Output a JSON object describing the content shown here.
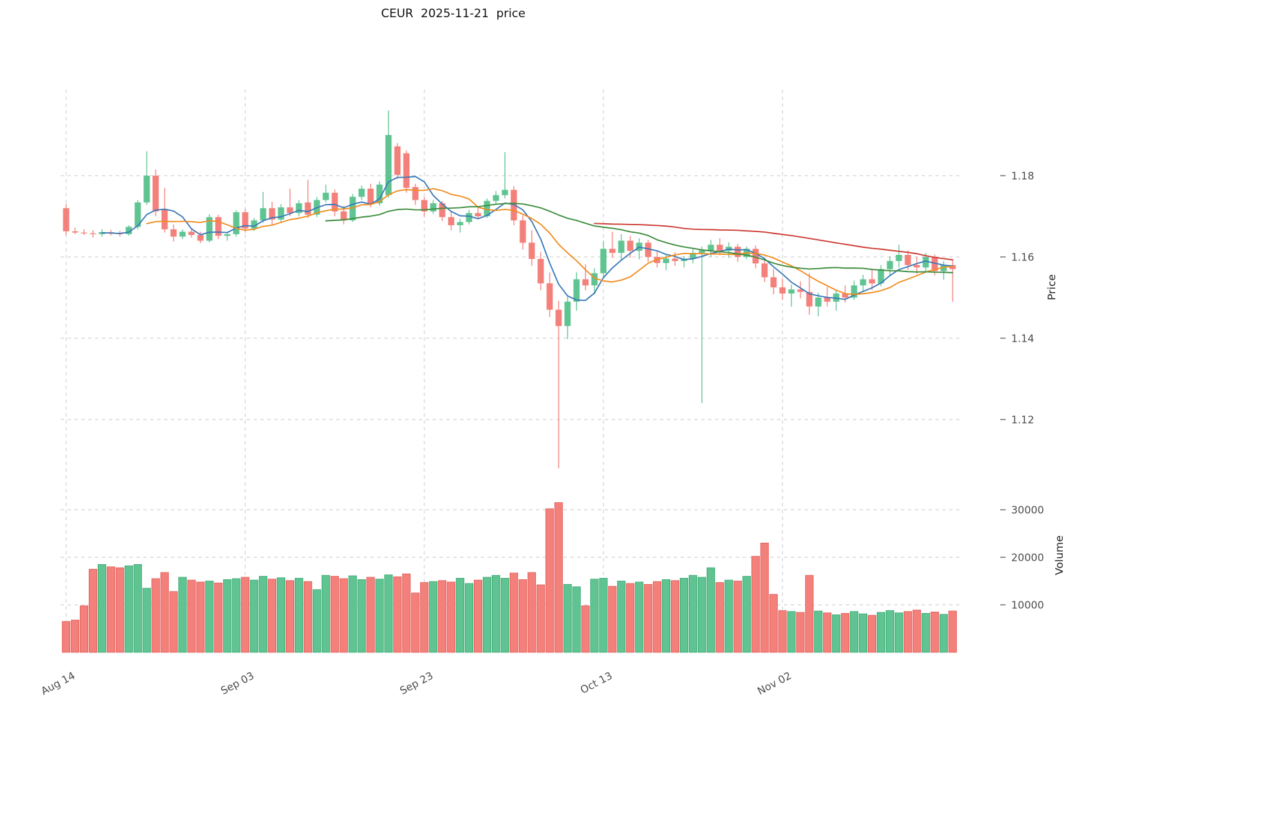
{
  "title": "CEUR  2025-11-21  price",
  "axes": {
    "price_label": "Price",
    "volume_label": "Volume",
    "price_ticks": [
      "1.18",
      "1.16",
      "1.14",
      "1.12"
    ],
    "price_tick_values": [
      1.18,
      1.16,
      1.14,
      1.12
    ],
    "volume_ticks": [
      "30000",
      "20000",
      "10000"
    ],
    "volume_tick_values": [
      30000,
      20000,
      10000
    ],
    "x_ticks": [
      {
        "label": "Aug 14",
        "index": 0
      },
      {
        "label": "Sep 03",
        "index": 20
      },
      {
        "label": "Sep 23",
        "index": 40
      },
      {
        "label": "Oct 13",
        "index": 60
      },
      {
        "label": "Nov 02",
        "index": 80
      }
    ]
  },
  "colors": {
    "up": "#5fc492",
    "down": "#f3807a",
    "up_edge": "#3da774",
    "down_edge": "#e05c58",
    "grid": "#c9c9c9",
    "tick_text": "#4d4d4d"
  },
  "chart_data": {
    "type": "candlestick",
    "symbol": "CEUR",
    "as_of_date": "2025-11-21",
    "panels": [
      "price",
      "volume"
    ],
    "price_axis_range": [
      1.105,
      1.201
    ],
    "volume_axis_range": [
      0,
      33000
    ],
    "grid": true,
    "moving_averages": [
      {
        "name": "MA5",
        "window": 5,
        "color": "#3a79b8"
      },
      {
        "name": "MA10",
        "window": 10,
        "color": "#f08c1e"
      },
      {
        "name": "MA30",
        "window": 30,
        "color": "#3c8c3c"
      },
      {
        "name": "MA60",
        "window": 60,
        "color": "#cc3b33"
      }
    ],
    "columns": [
      "date",
      "open",
      "high",
      "low",
      "close",
      "volume"
    ],
    "candles": [
      [
        "08-14",
        1.172,
        1.173,
        1.1653,
        1.1663,
        6500
      ],
      [
        "08-15",
        1.1663,
        1.1672,
        1.1656,
        1.166,
        6800
      ],
      [
        "08-16",
        1.166,
        1.1668,
        1.1654,
        1.1658,
        9800
      ],
      [
        "08-17",
        1.1658,
        1.1666,
        1.1648,
        1.1656,
        17500
      ],
      [
        "08-18",
        1.1656,
        1.1668,
        1.165,
        1.1661,
        18500
      ],
      [
        "08-19",
        1.1661,
        1.1667,
        1.1653,
        1.1658,
        18000
      ],
      [
        "08-20",
        1.1658,
        1.1664,
        1.165,
        1.1656,
        17800
      ],
      [
        "08-21",
        1.1656,
        1.1678,
        1.1652,
        1.1674,
        18200
      ],
      [
        "08-22",
        1.1674,
        1.174,
        1.1668,
        1.1734,
        18500
      ],
      [
        "08-23",
        1.1734,
        1.186,
        1.1728,
        1.18,
        13500
      ],
      [
        "08-24",
        1.18,
        1.1815,
        1.17,
        1.1712,
        15500
      ],
      [
        "08-25",
        1.1718,
        1.177,
        1.166,
        1.1668,
        16800
      ],
      [
        "08-26",
        1.1668,
        1.168,
        1.1638,
        1.165,
        12800
      ],
      [
        "08-27",
        1.165,
        1.1668,
        1.1644,
        1.1662,
        15800
      ],
      [
        "08-28",
        1.1662,
        1.167,
        1.1648,
        1.1654,
        15200
      ],
      [
        "08-29",
        1.1654,
        1.1662,
        1.1634,
        1.164,
        14800
      ],
      [
        "08-30",
        1.164,
        1.1705,
        1.1636,
        1.1698,
        15000
      ],
      [
        "08-31",
        1.1698,
        1.1704,
        1.1644,
        1.1652,
        14600
      ],
      [
        "09-01",
        1.1652,
        1.1662,
        1.164,
        1.1656,
        15300
      ],
      [
        "09-02",
        1.1656,
        1.1715,
        1.165,
        1.171,
        15500
      ],
      [
        "09-03",
        1.171,
        1.1718,
        1.166,
        1.167,
        15800
      ],
      [
        "09-04",
        1.167,
        1.1696,
        1.1664,
        1.169,
        15200
      ],
      [
        "09-05",
        1.169,
        1.176,
        1.1684,
        1.172,
        16000
      ],
      [
        "09-06",
        1.172,
        1.1736,
        1.168,
        1.1692,
        15400
      ],
      [
        "09-07",
        1.1692,
        1.173,
        1.1686,
        1.1722,
        15700
      ],
      [
        "09-08",
        1.1722,
        1.1768,
        1.17,
        1.1708,
        15100
      ],
      [
        "09-09",
        1.1708,
        1.174,
        1.17,
        1.1732,
        15600
      ],
      [
        "09-10",
        1.1734,
        1.179,
        1.1696,
        1.1704,
        14900
      ],
      [
        "09-11",
        1.1704,
        1.1748,
        1.1698,
        1.174,
        13200
      ],
      [
        "09-12",
        1.174,
        1.1778,
        1.1734,
        1.1758,
        16200
      ],
      [
        "09-13",
        1.1758,
        1.1766,
        1.17,
        1.1712,
        16000
      ],
      [
        "09-14",
        1.1712,
        1.1726,
        1.168,
        1.169,
        15500
      ],
      [
        "09-15",
        1.169,
        1.1755,
        1.1686,
        1.1748,
        16100
      ],
      [
        "09-16",
        1.1748,
        1.1776,
        1.174,
        1.1768,
        15300
      ],
      [
        "09-17",
        1.1768,
        1.178,
        1.1722,
        1.173,
        15800
      ],
      [
        "09-18",
        1.1732,
        1.1786,
        1.1726,
        1.1778,
        15400
      ],
      [
        "09-19",
        1.1752,
        1.196,
        1.1746,
        1.19,
        16300
      ],
      [
        "09-20",
        1.1872,
        1.188,
        1.1792,
        1.1802,
        15900
      ],
      [
        "09-21",
        1.1855,
        1.1862,
        1.1758,
        1.177,
        16500
      ],
      [
        "09-22",
        1.1772,
        1.178,
        1.1728,
        1.174,
        12500
      ],
      [
        "09-23",
        1.174,
        1.1748,
        1.1698,
        1.1712,
        14700
      ],
      [
        "09-24",
        1.1712,
        1.174,
        1.1706,
        1.1732,
        14900
      ],
      [
        "09-25",
        1.1732,
        1.1738,
        1.1688,
        1.1698,
        15100
      ],
      [
        "09-26",
        1.1698,
        1.1712,
        1.1666,
        1.1678,
        14800
      ],
      [
        "09-27",
        1.1678,
        1.1694,
        1.166,
        1.1686,
        15600
      ],
      [
        "09-28",
        1.1686,
        1.1716,
        1.168,
        1.1708,
        14500
      ],
      [
        "09-29",
        1.1708,
        1.1722,
        1.1694,
        1.17,
        15200
      ],
      [
        "09-30",
        1.17,
        1.1744,
        1.1696,
        1.1738,
        15800
      ],
      [
        "10-01",
        1.1738,
        1.1762,
        1.173,
        1.1752,
        16200
      ],
      [
        "10-02",
        1.1752,
        1.1858,
        1.1744,
        1.1765,
        15600
      ],
      [
        "10-03",
        1.1765,
        1.1774,
        1.1678,
        1.169,
        16700
      ],
      [
        "10-04",
        1.169,
        1.1702,
        1.1618,
        1.1635,
        15300
      ],
      [
        "10-05",
        1.1635,
        1.1666,
        1.1578,
        1.1595,
        16800
      ],
      [
        "10-06",
        1.1595,
        1.1612,
        1.1518,
        1.1535,
        14200
      ],
      [
        "10-07",
        1.1535,
        1.1562,
        1.1452,
        1.147,
        30200
      ],
      [
        "10-08",
        1.147,
        1.1492,
        1.108,
        1.143,
        31500
      ],
      [
        "10-09",
        1.143,
        1.1502,
        1.1398,
        1.149,
        14300
      ],
      [
        "10-10",
        1.149,
        1.1562,
        1.1468,
        1.1545,
        13800
      ],
      [
        "10-11",
        1.1545,
        1.1582,
        1.1518,
        1.153,
        9800
      ],
      [
        "10-12",
        1.153,
        1.1572,
        1.1508,
        1.156,
        15400
      ],
      [
        "10-13",
        1.156,
        1.164,
        1.1548,
        1.162,
        15600
      ],
      [
        "10-14",
        1.162,
        1.1662,
        1.1598,
        1.161,
        13900
      ],
      [
        "10-15",
        1.161,
        1.1656,
        1.159,
        1.164,
        15000
      ],
      [
        "10-16",
        1.164,
        1.1652,
        1.1598,
        1.1615,
        14500
      ],
      [
        "10-17",
        1.1615,
        1.1646,
        1.1594,
        1.1635,
        14800
      ],
      [
        "10-18",
        1.1635,
        1.1642,
        1.1588,
        1.16,
        14300
      ],
      [
        "10-19",
        1.16,
        1.1616,
        1.1574,
        1.1585,
        14900
      ],
      [
        "10-20",
        1.1585,
        1.1606,
        1.1568,
        1.1596,
        15300
      ],
      [
        "10-21",
        1.1596,
        1.1612,
        1.1578,
        1.159,
        15100
      ],
      [
        "10-22",
        1.159,
        1.1602,
        1.1574,
        1.1596,
        15600
      ],
      [
        "10-23",
        1.1596,
        1.162,
        1.1584,
        1.161,
        16200
      ],
      [
        "10-24",
        1.161,
        1.1626,
        1.124,
        1.1616,
        15800
      ],
      [
        "10-25",
        1.1616,
        1.1642,
        1.16,
        1.163,
        17800
      ],
      [
        "10-26",
        1.163,
        1.1646,
        1.1604,
        1.1615,
        14700
      ],
      [
        "10-27",
        1.1615,
        1.1636,
        1.1598,
        1.1625,
        15200
      ],
      [
        "10-28",
        1.1625,
        1.1632,
        1.1588,
        1.16,
        15000
      ],
      [
        "10-29",
        1.16,
        1.1626,
        1.1594,
        1.162,
        16000
      ],
      [
        "10-30",
        1.162,
        1.1628,
        1.1572,
        1.1584,
        20200
      ],
      [
        "10-31",
        1.1584,
        1.1596,
        1.1538,
        1.155,
        23000
      ],
      [
        "11-01",
        1.155,
        1.157,
        1.1508,
        1.1525,
        12200
      ],
      [
        "11-02",
        1.1525,
        1.1546,
        1.1494,
        1.151,
        8800
      ],
      [
        "11-03",
        1.151,
        1.1532,
        1.1478,
        1.152,
        8600
      ],
      [
        "11-04",
        1.152,
        1.154,
        1.1498,
        1.1514,
        8400
      ],
      [
        "11-05",
        1.1514,
        1.156,
        1.1458,
        1.1478,
        16200
      ],
      [
        "11-06",
        1.1478,
        1.1512,
        1.1454,
        1.15,
        8700
      ],
      [
        "11-07",
        1.15,
        1.1526,
        1.1478,
        1.149,
        8300
      ],
      [
        "11-08",
        1.149,
        1.152,
        1.1468,
        1.151,
        7900
      ],
      [
        "11-09",
        1.151,
        1.153,
        1.1488,
        1.15,
        8200
      ],
      [
        "11-10",
        1.15,
        1.1542,
        1.1494,
        1.153,
        8600
      ],
      [
        "11-11",
        1.153,
        1.1556,
        1.1514,
        1.1545,
        8100
      ],
      [
        "11-12",
        1.1545,
        1.157,
        1.1518,
        1.1535,
        7800
      ],
      [
        "11-13",
        1.1535,
        1.158,
        1.1528,
        1.157,
        8400
      ],
      [
        "11-14",
        1.157,
        1.1602,
        1.1554,
        1.159,
        8800
      ],
      [
        "11-15",
        1.159,
        1.163,
        1.1574,
        1.1605,
        8300
      ],
      [
        "11-16",
        1.1605,
        1.1616,
        1.1568,
        1.158,
        8600
      ],
      [
        "11-17",
        1.158,
        1.16,
        1.1558,
        1.1574,
        8900
      ],
      [
        "11-18",
        1.1574,
        1.161,
        1.1564,
        1.16,
        8200
      ],
      [
        "11-19",
        1.16,
        1.1606,
        1.1554,
        1.1565,
        8500
      ],
      [
        "11-20",
        1.1565,
        1.159,
        1.1544,
        1.158,
        8000
      ],
      [
        "11-21",
        1.158,
        1.1594,
        1.149,
        1.157,
        8700
      ]
    ]
  }
}
